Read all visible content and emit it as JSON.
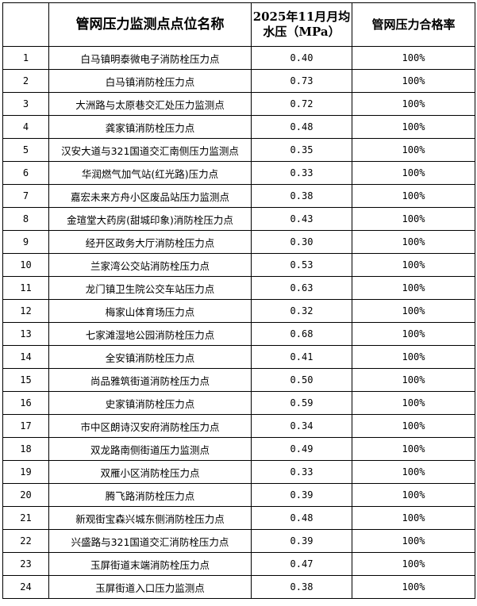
{
  "table": {
    "headers": [
      "",
      "管网压力监测点点位名称",
      "2025年11月月均水压（MPa）",
      "管网压力合格率"
    ],
    "rows": [
      {
        "no": "1",
        "name": "白马镇明泰微电子消防栓压力点",
        "pressure": "0.40",
        "rate": "100%"
      },
      {
        "no": "2",
        "name": "白马镇消防栓压力点",
        "pressure": "0.73",
        "rate": "100%"
      },
      {
        "no": "3",
        "name": "大洲路与太原巷交汇处压力监测点",
        "pressure": "0.72",
        "rate": "100%"
      },
      {
        "no": "4",
        "name": "龚家镇消防栓压力点",
        "pressure": "0.48",
        "rate": "100%"
      },
      {
        "no": "5",
        "name": "汉安大道与321国道交汇南侧压力监测点",
        "pressure": "0.35",
        "rate": "100%"
      },
      {
        "no": "6",
        "name": "华润燃气加气站(红光路)压力点",
        "pressure": "0.33",
        "rate": "100%"
      },
      {
        "no": "7",
        "name": "嘉宏未来方舟小区废品站压力监测点",
        "pressure": "0.38",
        "rate": "100%"
      },
      {
        "no": "8",
        "name": "金瑄堂大药房(甜城印象)消防栓压力点",
        "pressure": "0.43",
        "rate": "100%"
      },
      {
        "no": "9",
        "name": "经开区政务大厅消防栓压力点",
        "pressure": "0.30",
        "rate": "100%"
      },
      {
        "no": "10",
        "name": "兰家湾公交站消防栓压力点",
        "pressure": "0.53",
        "rate": "100%"
      },
      {
        "no": "11",
        "name": "龙门镇卫生院公交车站压力点",
        "pressure": "0.63",
        "rate": "100%"
      },
      {
        "no": "12",
        "name": "梅家山体育场压力点",
        "pressure": "0.32",
        "rate": "100%"
      },
      {
        "no": "13",
        "name": "七家滩湿地公园消防栓压力点",
        "pressure": "0.68",
        "rate": "100%"
      },
      {
        "no": "14",
        "name": "全安镇消防栓压力点",
        "pressure": "0.41",
        "rate": "100%"
      },
      {
        "no": "15",
        "name": "尚品雅筑街道消防栓压力点",
        "pressure": "0.50",
        "rate": "100%"
      },
      {
        "no": "16",
        "name": "史家镇消防栓压力点",
        "pressure": "0.59",
        "rate": "100%"
      },
      {
        "no": "17",
        "name": "市中区朗诗汉安府消防栓压力点",
        "pressure": "0.34",
        "rate": "100%"
      },
      {
        "no": "18",
        "name": "双龙路南侧街道压力监测点",
        "pressure": "0.49",
        "rate": "100%"
      },
      {
        "no": "19",
        "name": "双雁小区消防栓压力点",
        "pressure": "0.33",
        "rate": "100%"
      },
      {
        "no": "20",
        "name": "腾飞路消防栓压力点",
        "pressure": "0.39",
        "rate": "100%"
      },
      {
        "no": "21",
        "name": "新观街宝森兴城东侧消防栓压力点",
        "pressure": "0.48",
        "rate": "100%"
      },
      {
        "no": "22",
        "name": "兴盛路与321国道交汇消防栓压力点",
        "pressure": "0.39",
        "rate": "100%"
      },
      {
        "no": "23",
        "name": "玉屏街道末端消防栓压力点",
        "pressure": "0.47",
        "rate": "100%"
      },
      {
        "no": "24",
        "name": "玉屏街道入口压力监测点",
        "pressure": "0.38",
        "rate": "100%"
      }
    ]
  }
}
